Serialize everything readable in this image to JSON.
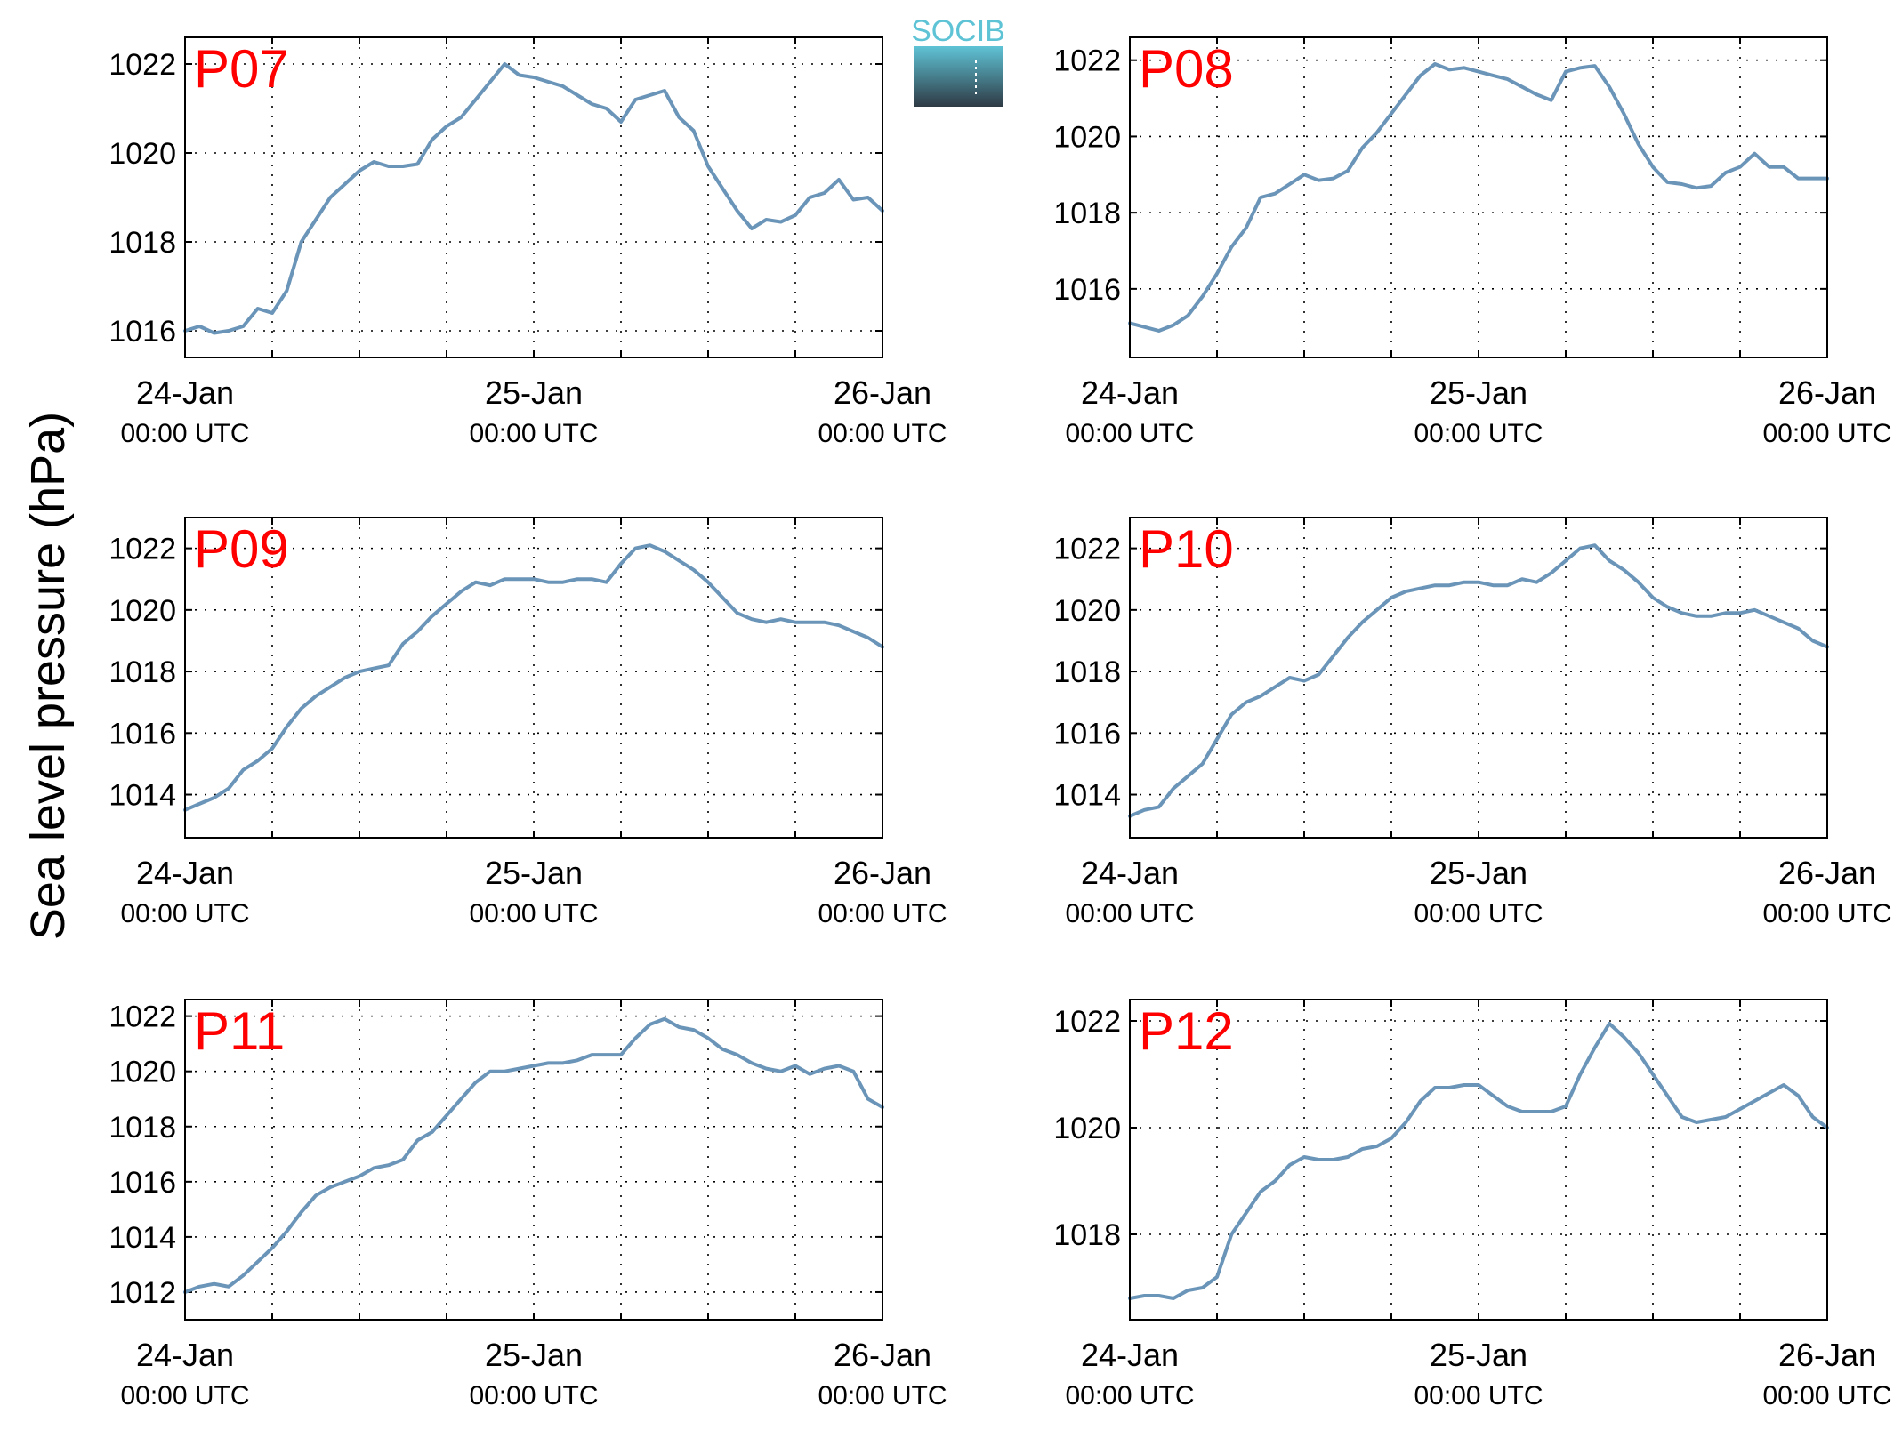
{
  "figure": {
    "ylabel": "Sea level pressure (hPa)",
    "logo_text": "SOCIB"
  },
  "colors": {
    "line": "#6b95b8",
    "station_label": "#ff0000",
    "grid": "#000000",
    "logo_top": "#5fc3d6",
    "logo_bottom": "#2e3a44"
  },
  "chart_data": [
    {
      "type": "line",
      "station": "P07",
      "x_start": "24-Jan 00:00 UTC",
      "x_end": "26-Jan 00:00 UTC",
      "x_tick_labels": [
        [
          "24-Jan",
          "00:00 UTC"
        ],
        [
          "25-Jan",
          "00:00 UTC"
        ],
        [
          "26-Jan",
          "00:00 UTC"
        ]
      ],
      "y_ticks": [
        1016,
        1018,
        1020,
        1022
      ],
      "ylim": [
        1015.4,
        1022.6
      ],
      "grid": true,
      "x_hours": [
        0,
        1,
        2,
        3,
        4,
        5,
        6,
        7,
        8,
        9,
        10,
        11,
        12,
        13,
        14,
        15,
        16,
        17,
        18,
        19,
        20,
        21,
        22,
        23,
        24,
        25,
        26,
        27,
        28,
        29,
        30,
        31,
        32,
        33,
        34,
        35,
        36,
        37,
        38,
        39,
        40,
        41,
        42,
        43,
        44,
        45,
        46,
        47,
        48
      ],
      "values": [
        1016.0,
        1016.1,
        1015.95,
        1016.0,
        1016.1,
        1016.5,
        1016.4,
        1016.9,
        1018.0,
        1018.5,
        1019.0,
        1019.3,
        1019.6,
        1019.8,
        1019.7,
        1019.7,
        1019.75,
        1020.3,
        1020.6,
        1020.8,
        1021.2,
        1021.6,
        1022.0,
        1021.75,
        1021.7,
        1021.6,
        1021.5,
        1021.3,
        1021.1,
        1021.0,
        1020.7,
        1021.2,
        1021.3,
        1021.4,
        1020.8,
        1020.5,
        1019.7,
        1019.2,
        1018.7,
        1018.3,
        1018.5,
        1018.45,
        1018.6,
        1019.0,
        1019.1,
        1019.4,
        1018.95,
        1019.0,
        1018.7
      ]
    },
    {
      "type": "line",
      "station": "P08",
      "x_start": "24-Jan 00:00 UTC",
      "x_end": "26-Jan 00:00 UTC",
      "x_tick_labels": [
        [
          "24-Jan",
          "00:00 UTC"
        ],
        [
          "25-Jan",
          "00:00 UTC"
        ],
        [
          "26-Jan",
          "00:00 UTC"
        ]
      ],
      "y_ticks": [
        1016,
        1018,
        1020,
        1022
      ],
      "ylim": [
        1014.2,
        1022.6
      ],
      "grid": true,
      "x_hours": [
        0,
        1,
        2,
        3,
        4,
        5,
        6,
        7,
        8,
        9,
        10,
        11,
        12,
        13,
        14,
        15,
        16,
        17,
        18,
        19,
        20,
        21,
        22,
        23,
        24,
        25,
        26,
        27,
        28,
        29,
        30,
        31,
        32,
        33,
        34,
        35,
        36,
        37,
        38,
        39,
        40,
        41,
        42,
        43,
        44,
        45,
        46,
        47,
        48
      ],
      "values": [
        1015.1,
        1015.0,
        1014.9,
        1015.05,
        1015.3,
        1015.8,
        1016.4,
        1017.1,
        1017.6,
        1018.4,
        1018.5,
        1018.75,
        1019.0,
        1018.85,
        1018.9,
        1019.1,
        1019.7,
        1020.1,
        1020.6,
        1021.1,
        1021.6,
        1021.9,
        1021.75,
        1021.8,
        1021.7,
        1021.6,
        1021.5,
        1021.3,
        1021.1,
        1020.95,
        1021.7,
        1021.8,
        1021.85,
        1021.3,
        1020.6,
        1019.8,
        1019.2,
        1018.8,
        1018.75,
        1018.65,
        1018.7,
        1019.05,
        1019.2,
        1019.55,
        1019.2,
        1019.2,
        1018.9,
        1018.9,
        1018.9
      ]
    },
    {
      "type": "line",
      "station": "P09",
      "x_start": "24-Jan 00:00 UTC",
      "x_end": "26-Jan 00:00 UTC",
      "x_tick_labels": [
        [
          "24-Jan",
          "00:00 UTC"
        ],
        [
          "25-Jan",
          "00:00 UTC"
        ],
        [
          "26-Jan",
          "00:00 UTC"
        ]
      ],
      "y_ticks": [
        1014,
        1016,
        1018,
        1020,
        1022
      ],
      "ylim": [
        1012.6,
        1023.0
      ],
      "grid": true,
      "x_hours": [
        0,
        1,
        2,
        3,
        4,
        5,
        6,
        7,
        8,
        9,
        10,
        11,
        12,
        13,
        14,
        15,
        16,
        17,
        18,
        19,
        20,
        21,
        22,
        23,
        24,
        25,
        26,
        27,
        28,
        29,
        30,
        31,
        32,
        33,
        34,
        35,
        36,
        37,
        38,
        39,
        40,
        41,
        42,
        43,
        44,
        45,
        46,
        47,
        48
      ],
      "values": [
        1013.5,
        1013.7,
        1013.9,
        1014.2,
        1014.8,
        1015.1,
        1015.5,
        1016.2,
        1016.8,
        1017.2,
        1017.5,
        1017.8,
        1018.0,
        1018.1,
        1018.2,
        1018.9,
        1019.3,
        1019.8,
        1020.2,
        1020.6,
        1020.9,
        1020.8,
        1021.0,
        1021.0,
        1021.0,
        1020.9,
        1020.9,
        1021.0,
        1021.0,
        1020.9,
        1021.5,
        1022.0,
        1022.1,
        1021.9,
        1021.6,
        1021.3,
        1020.9,
        1020.4,
        1019.9,
        1019.7,
        1019.6,
        1019.7,
        1019.6,
        1019.6,
        1019.6,
        1019.5,
        1019.3,
        1019.1,
        1018.8
      ]
    },
    {
      "type": "line",
      "station": "P10",
      "x_start": "24-Jan 00:00 UTC",
      "x_end": "26-Jan 00:00 UTC",
      "x_tick_labels": [
        [
          "24-Jan",
          "00:00 UTC"
        ],
        [
          "25-Jan",
          "00:00 UTC"
        ],
        [
          "26-Jan",
          "00:00 UTC"
        ]
      ],
      "y_ticks": [
        1014,
        1016,
        1018,
        1020,
        1022
      ],
      "ylim": [
        1012.6,
        1023.0
      ],
      "grid": true,
      "x_hours": [
        0,
        1,
        2,
        3,
        4,
        5,
        6,
        7,
        8,
        9,
        10,
        11,
        12,
        13,
        14,
        15,
        16,
        17,
        18,
        19,
        20,
        21,
        22,
        23,
        24,
        25,
        26,
        27,
        28,
        29,
        30,
        31,
        32,
        33,
        34,
        35,
        36,
        37,
        38,
        39,
        40,
        41,
        42,
        43,
        44,
        45,
        46,
        47,
        48
      ],
      "values": [
        1013.3,
        1013.5,
        1013.6,
        1014.2,
        1014.6,
        1015.0,
        1015.8,
        1016.6,
        1017.0,
        1017.2,
        1017.5,
        1017.8,
        1017.7,
        1017.9,
        1018.5,
        1019.1,
        1019.6,
        1020.0,
        1020.4,
        1020.6,
        1020.7,
        1020.8,
        1020.8,
        1020.9,
        1020.9,
        1020.8,
        1020.8,
        1021.0,
        1020.9,
        1021.2,
        1021.6,
        1022.0,
        1022.1,
        1021.6,
        1021.3,
        1020.9,
        1020.4,
        1020.1,
        1019.9,
        1019.8,
        1019.8,
        1019.9,
        1019.9,
        1020.0,
        1019.8,
        1019.6,
        1019.4,
        1019.0,
        1018.8
      ]
    },
    {
      "type": "line",
      "station": "P11",
      "x_start": "24-Jan 00:00 UTC",
      "x_end": "26-Jan 00:00 UTC",
      "x_tick_labels": [
        [
          "24-Jan",
          "00:00 UTC"
        ],
        [
          "25-Jan",
          "00:00 UTC"
        ],
        [
          "26-Jan",
          "00:00 UTC"
        ]
      ],
      "y_ticks": [
        1012,
        1014,
        1016,
        1018,
        1020,
        1022
      ],
      "ylim": [
        1011.0,
        1022.6
      ],
      "grid": true,
      "x_hours": [
        0,
        1,
        2,
        3,
        4,
        5,
        6,
        7,
        8,
        9,
        10,
        11,
        12,
        13,
        14,
        15,
        16,
        17,
        18,
        19,
        20,
        21,
        22,
        23,
        24,
        25,
        26,
        27,
        28,
        29,
        30,
        31,
        32,
        33,
        34,
        35,
        36,
        37,
        38,
        39,
        40,
        41,
        42,
        43,
        44,
        45,
        46,
        47,
        48
      ],
      "values": [
        1012.0,
        1012.2,
        1012.3,
        1012.2,
        1012.6,
        1013.1,
        1013.6,
        1014.2,
        1014.9,
        1015.5,
        1015.8,
        1016.0,
        1016.2,
        1016.5,
        1016.6,
        1016.8,
        1017.5,
        1017.8,
        1018.4,
        1019.0,
        1019.6,
        1020.0,
        1020.0,
        1020.1,
        1020.2,
        1020.3,
        1020.3,
        1020.4,
        1020.6,
        1020.6,
        1020.6,
        1021.2,
        1021.7,
        1021.9,
        1021.6,
        1021.5,
        1021.2,
        1020.8,
        1020.6,
        1020.3,
        1020.1,
        1020.0,
        1020.2,
        1019.9,
        1020.1,
        1020.2,
        1020.0,
        1019.0,
        1018.7
      ]
    },
    {
      "type": "line",
      "station": "P12",
      "x_start": "24-Jan 00:00 UTC",
      "x_end": "26-Jan 00:00 UTC",
      "x_tick_labels": [
        [
          "24-Jan",
          "00:00 UTC"
        ],
        [
          "25-Jan",
          "00:00 UTC"
        ],
        [
          "26-Jan",
          "00:00 UTC"
        ]
      ],
      "y_ticks": [
        1018,
        1020,
        1022
      ],
      "ylim": [
        1016.4,
        1022.4
      ],
      "grid": true,
      "x_hours": [
        0,
        1,
        2,
        3,
        4,
        5,
        6,
        7,
        8,
        9,
        10,
        11,
        12,
        13,
        14,
        15,
        16,
        17,
        18,
        19,
        20,
        21,
        22,
        23,
        24,
        25,
        26,
        27,
        28,
        29,
        30,
        31,
        32,
        33,
        34,
        35,
        36,
        37,
        38,
        39,
        40,
        41,
        42,
        43,
        44,
        45,
        46,
        47,
        48
      ],
      "values": [
        1016.8,
        1016.85,
        1016.85,
        1016.8,
        1016.95,
        1017.0,
        1017.2,
        1018.0,
        1018.4,
        1018.8,
        1019.0,
        1019.3,
        1019.45,
        1019.4,
        1019.4,
        1019.45,
        1019.6,
        1019.65,
        1019.8,
        1020.1,
        1020.5,
        1020.75,
        1020.75,
        1020.8,
        1020.8,
        1020.6,
        1020.4,
        1020.3,
        1020.3,
        1020.3,
        1020.4,
        1021.0,
        1021.5,
        1021.95,
        1021.7,
        1021.4,
        1021.0,
        1020.6,
        1020.2,
        1020.1,
        1020.15,
        1020.2,
        1020.35,
        1020.5,
        1020.65,
        1020.8,
        1020.6,
        1020.2,
        1020.0
      ]
    }
  ]
}
